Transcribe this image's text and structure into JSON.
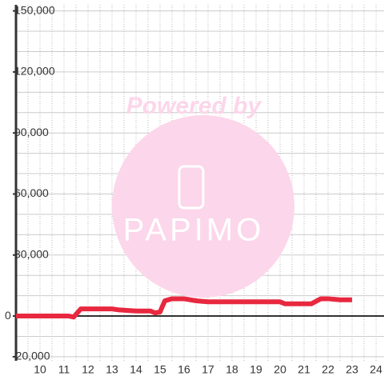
{
  "chart_data": {
    "type": "line",
    "watermark": {
      "top": "Powered by",
      "bottom": "PAPIMO"
    },
    "series": [
      {
        "color": "#e8283f",
        "x": [
          9,
          11.2,
          11.4,
          11.7,
          12,
          13,
          13.3,
          14,
          14.6,
          14.8,
          15.0,
          15.2,
          15.5,
          16,
          16.5,
          17,
          18,
          19,
          20,
          20.2,
          21,
          21.3,
          21.7,
          22,
          22.5,
          23
        ],
        "values": [
          0,
          0,
          -500,
          3500,
          3500,
          3500,
          3000,
          2500,
          2500,
          1500,
          2000,
          7500,
          8500,
          8500,
          7500,
          7000,
          7000,
          7000,
          7000,
          6000,
          6000,
          6000,
          8500,
          8500,
          8000,
          8000
        ]
      }
    ],
    "xlim": [
      9,
      24.33
    ],
    "xticks": [
      10,
      11,
      12,
      13,
      14,
      15,
      16,
      17,
      18,
      19,
      20,
      21,
      22,
      23,
      24
    ],
    "x_minor_grid": [
      9.5,
      10.5,
      11.5,
      12.5,
      13.5,
      14.5,
      15.5,
      16.5,
      17.5,
      18.5,
      19.5,
      20.5,
      21.5,
      22.5,
      23.5
    ],
    "ylim": [
      -22000,
      153000
    ],
    "yticks": [
      {
        "value": 150000,
        "label": "150,000"
      },
      {
        "value": 120000,
        "label": "120,000"
      },
      {
        "value": 90000,
        "label": "90,000"
      },
      {
        "value": 60000,
        "label": "60,000"
      },
      {
        "value": 30000,
        "label": "30,000"
      },
      0,
      {
        "value": -20000,
        "label": "-20,000"
      }
    ],
    "y_minor_grid": [
      140000,
      130000,
      110000,
      100000,
      80000,
      70000,
      50000,
      40000,
      20000,
      10000,
      -10000
    ],
    "grid": true
  }
}
